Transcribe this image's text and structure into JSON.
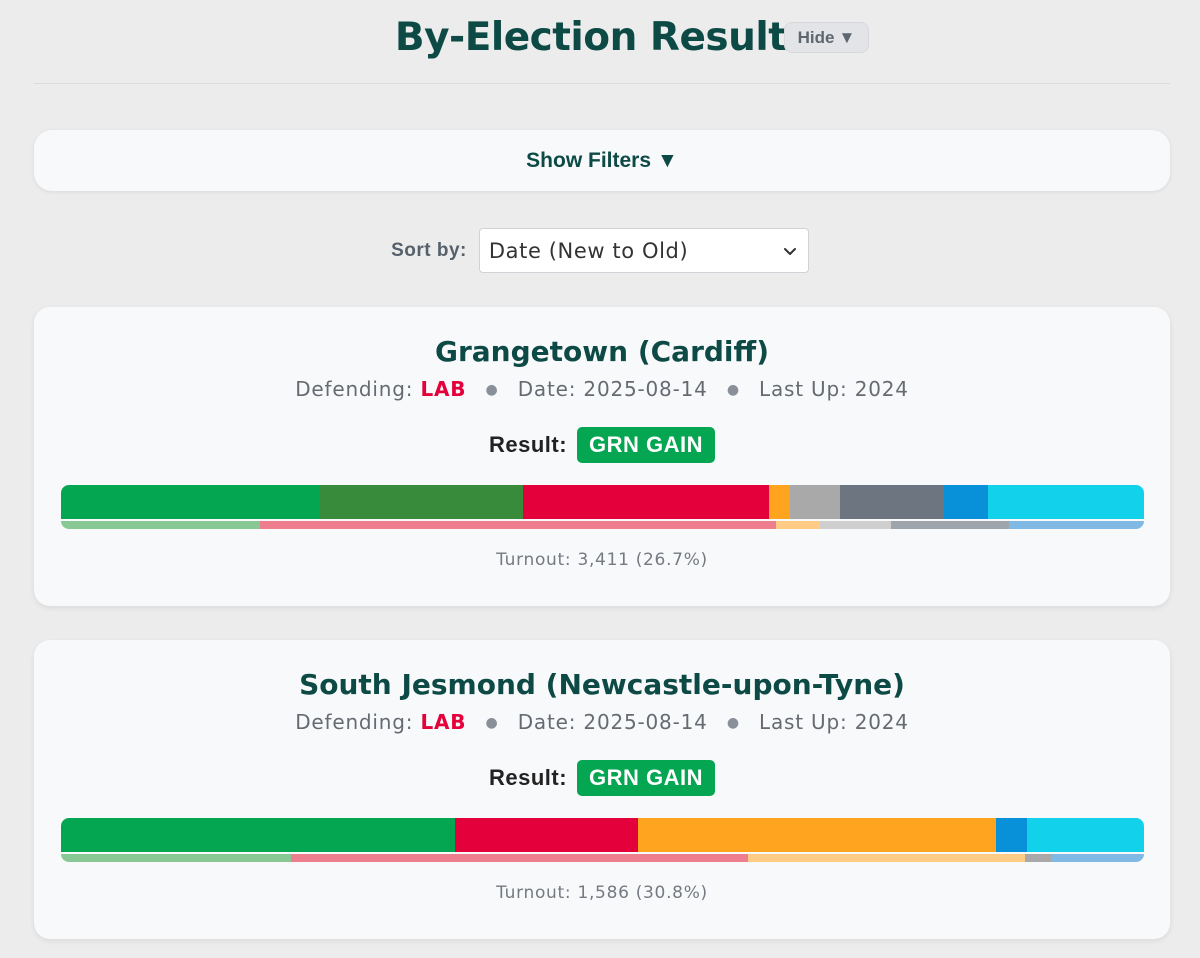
{
  "header": {
    "title": "By-Election Results",
    "hide_label": "Hide"
  },
  "filters": {
    "toggle_label": "Show Filters"
  },
  "sort": {
    "label": "Sort by:",
    "selected": "Date (New to Old)"
  },
  "labels": {
    "defending": "Defending:",
    "date": "Date:",
    "last_up": "Last Up:",
    "result": "Result:",
    "turnout": "Turnout:"
  },
  "party_colors": {
    "GRN": "#04a652",
    "GRN_ALT": "#388b3a",
    "LAB": "#e4003b",
    "REF": "#12d2eb",
    "LD": "#ffa41e",
    "IND": "#6c7580",
    "OTH": "#a9a9a9",
    "CON": "#0890d8"
  },
  "results": [
    {
      "title": "Grangetown (Cardiff)",
      "defending": "LAB",
      "date": "2025-08-14",
      "last_up": "2024",
      "result": "GRN GAIN",
      "turnout": "3,411 (26.7%)",
      "bar": [
        {
          "party": "GRN",
          "share": 23.9,
          "color": "#04a652"
        },
        {
          "party": "GRN_ALT",
          "share": 18.8,
          "color": "#388b3a"
        },
        {
          "party": "LAB",
          "share": 22.7,
          "color": "#e4003b"
        },
        {
          "party": "LD",
          "share": 1.9,
          "color": "#ffa41e"
        },
        {
          "party": "OTH",
          "share": 4.6,
          "color": "#a9a9a9"
        },
        {
          "party": "IND",
          "share": 9.6,
          "color": "#6c7580"
        },
        {
          "party": "CON",
          "share": 4.1,
          "color": "#0890d8"
        },
        {
          "party": "REF",
          "share": 14.4,
          "color": "#12d2eb"
        }
      ],
      "previous": [
        {
          "party": "GRN",
          "share": 18.4,
          "color": "#88c895"
        },
        {
          "party": "LAB",
          "share": 47.6,
          "color": "#ee7e8e"
        },
        {
          "party": "LD",
          "share": 4.1,
          "color": "#ffcb85"
        },
        {
          "party": "OTH",
          "share": 6.5,
          "color": "#cfcfcf"
        },
        {
          "party": "IND",
          "share": 10.9,
          "color": "#9ea5ad"
        },
        {
          "party": "CON",
          "share": 12.5,
          "color": "#7fb9e4"
        }
      ]
    },
    {
      "title": "South Jesmond (Newcastle-upon-Tyne)",
      "defending": "LAB",
      "date": "2025-08-14",
      "last_up": "2024",
      "result": "GRN GAIN",
      "turnout": "1,586 (30.8%)",
      "bar": [
        {
          "party": "GRN",
          "share": 36.4,
          "color": "#04a652"
        },
        {
          "party": "LAB",
          "share": 16.9,
          "color": "#e4003b"
        },
        {
          "party": "LD",
          "share": 33.0,
          "color": "#ffa41e"
        },
        {
          "party": "CON",
          "share": 2.9,
          "color": "#0890d8"
        },
        {
          "party": "REF",
          "share": 10.8,
          "color": "#12d2eb"
        }
      ],
      "previous": [
        {
          "party": "GRN",
          "share": 21.2,
          "color": "#88c895"
        },
        {
          "party": "LAB",
          "share": 42.2,
          "color": "#ee7e8e"
        },
        {
          "party": "LD",
          "share": 25.6,
          "color": "#ffcb85"
        },
        {
          "party": "OTH",
          "share": 2.4,
          "color": "#a9a9a9"
        },
        {
          "party": "CON",
          "share": 8.6,
          "color": "#7fb9e4"
        }
      ]
    }
  ]
}
